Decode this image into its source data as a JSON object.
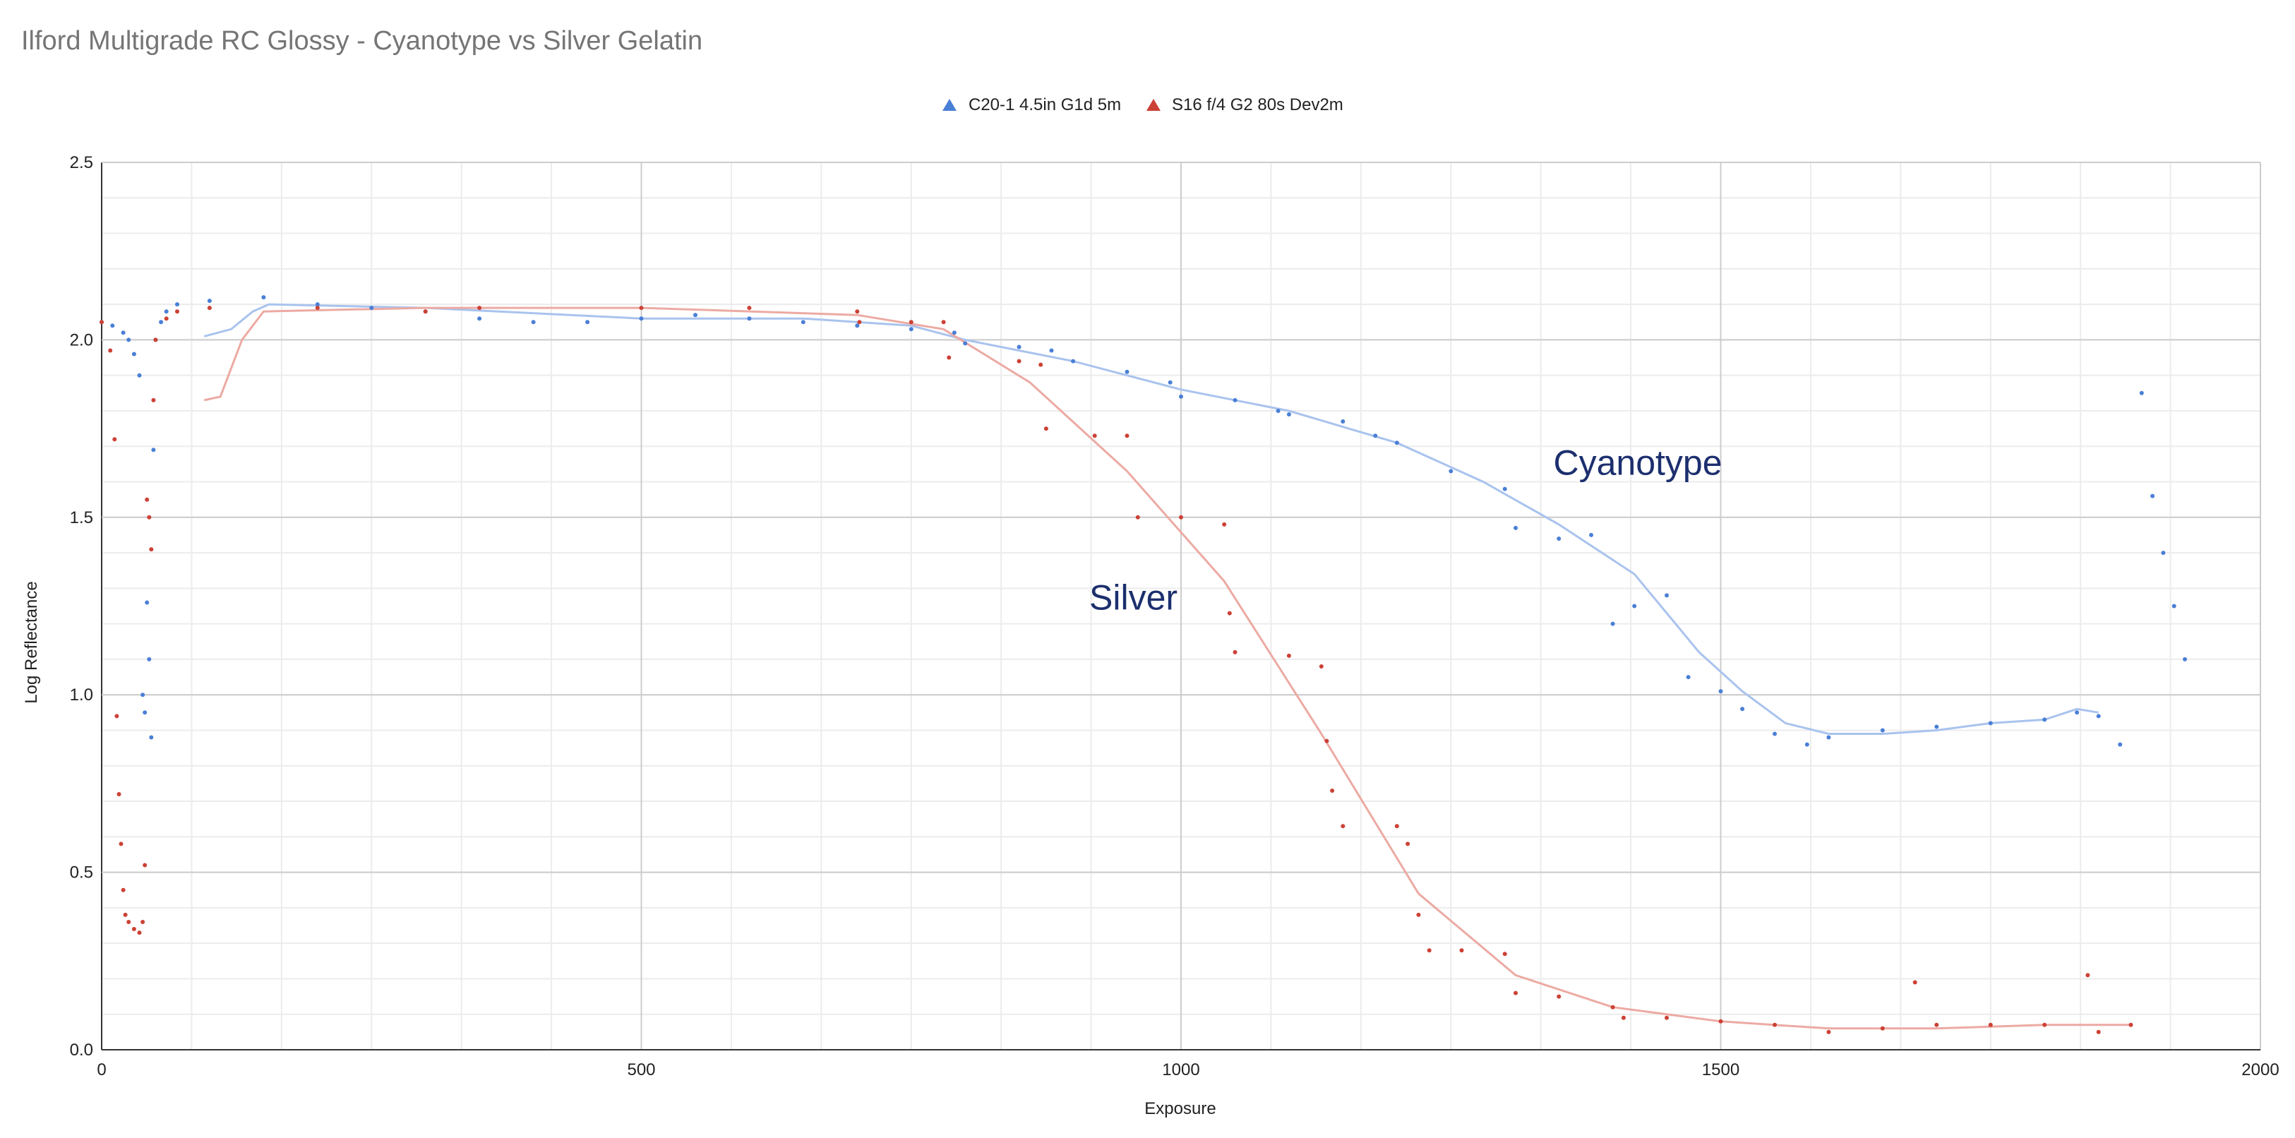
{
  "chart_data": {
    "type": "scatter",
    "title": "Ilford Multigrade RC Glossy - Cyanotype vs Silver Gelatin",
    "xlabel": "Exposure",
    "ylabel": "Log Reflectance",
    "xlim": [
      0,
      2000
    ],
    "ylim": [
      0,
      2.5
    ],
    "x_ticks": [
      0,
      500,
      1000,
      1500,
      2000
    ],
    "y_ticks": [
      0.0,
      0.5,
      1.0,
      1.5,
      2.0,
      2.5
    ],
    "x_tick_labels": [
      "0",
      "500",
      "1000",
      "1500",
      "2000"
    ],
    "y_tick_labels": [
      "0.0",
      "0.5",
      "1.0",
      "1.5",
      "2.0",
      "2.5"
    ],
    "grid": true,
    "legend_position": "top-center",
    "annotations": [
      {
        "text": "Cyanotype",
        "x": 1345,
        "y": 1.62
      },
      {
        "text": "Silver",
        "x": 915,
        "y": 1.24
      }
    ],
    "series": [
      {
        "name": "C20-1 4.5in G1d 5m",
        "color": "#4a7fd6",
        "trend_color": "#a9c3ee",
        "points": [
          [
            0,
            2.05
          ],
          [
            10,
            2.04
          ],
          [
            20,
            2.02
          ],
          [
            25,
            2.0
          ],
          [
            30,
            1.96
          ],
          [
            35,
            1.9
          ],
          [
            38,
            1.0
          ],
          [
            40,
            0.95
          ],
          [
            42,
            1.26
          ],
          [
            44,
            1.1
          ],
          [
            46,
            0.88
          ],
          [
            48,
            1.69
          ],
          [
            50,
            2.0
          ],
          [
            55,
            2.05
          ],
          [
            60,
            2.08
          ],
          [
            70,
            2.1
          ],
          [
            100,
            2.11
          ],
          [
            150,
            2.12
          ],
          [
            200,
            2.1
          ],
          [
            250,
            2.09
          ],
          [
            300,
            2.08
          ],
          [
            350,
            2.06
          ],
          [
            400,
            2.05
          ],
          [
            450,
            2.05
          ],
          [
            500,
            2.06
          ],
          [
            550,
            2.07
          ],
          [
            600,
            2.06
          ],
          [
            650,
            2.05
          ],
          [
            700,
            2.04
          ],
          [
            750,
            2.03
          ],
          [
            790,
            2.02
          ],
          [
            800,
            1.99
          ],
          [
            850,
            1.98
          ],
          [
            880,
            1.97
          ],
          [
            900,
            1.94
          ],
          [
            950,
            1.91
          ],
          [
            990,
            1.88
          ],
          [
            1000,
            1.84
          ],
          [
            1050,
            1.83
          ],
          [
            1090,
            1.8
          ],
          [
            1100,
            1.79
          ],
          [
            1150,
            1.77
          ],
          [
            1180,
            1.73
          ],
          [
            1200,
            1.71
          ],
          [
            1250,
            1.63
          ],
          [
            1300,
            1.58
          ],
          [
            1310,
            1.47
          ],
          [
            1350,
            1.44
          ],
          [
            1380,
            1.45
          ],
          [
            1400,
            1.2
          ],
          [
            1420,
            1.25
          ],
          [
            1450,
            1.28
          ],
          [
            1470,
            1.05
          ],
          [
            1500,
            1.01
          ],
          [
            1520,
            0.96
          ],
          [
            1550,
            0.89
          ],
          [
            1580,
            0.86
          ],
          [
            1600,
            0.88
          ],
          [
            1650,
            0.9
          ],
          [
            1700,
            0.91
          ],
          [
            1750,
            0.92
          ],
          [
            1800,
            0.93
          ],
          [
            1830,
            0.95
          ],
          [
            1850,
            0.94
          ],
          [
            1870,
            0.86
          ],
          [
            1890,
            1.85
          ],
          [
            1900,
            1.56
          ],
          [
            1910,
            1.4
          ],
          [
            1920,
            1.25
          ],
          [
            1930,
            1.1
          ]
        ],
        "trend": [
          [
            95,
            2.01
          ],
          [
            120,
            2.03
          ],
          [
            140,
            2.08
          ],
          [
            155,
            2.1
          ],
          [
            300,
            2.09
          ],
          [
            500,
            2.06
          ],
          [
            650,
            2.06
          ],
          [
            750,
            2.04
          ],
          [
            800,
            2.0
          ],
          [
            900,
            1.94
          ],
          [
            1000,
            1.86
          ],
          [
            1100,
            1.8
          ],
          [
            1200,
            1.71
          ],
          [
            1280,
            1.6
          ],
          [
            1350,
            1.48
          ],
          [
            1420,
            1.34
          ],
          [
            1480,
            1.12
          ],
          [
            1520,
            1.01
          ],
          [
            1560,
            0.92
          ],
          [
            1600,
            0.89
          ],
          [
            1650,
            0.89
          ],
          [
            1700,
            0.9
          ],
          [
            1750,
            0.92
          ],
          [
            1800,
            0.93
          ],
          [
            1830,
            0.96
          ],
          [
            1850,
            0.95
          ]
        ]
      },
      {
        "name": "S16 f/4 G2 80s Dev2m",
        "color": "#cc4135",
        "trend_color": "#ecaaa3",
        "points": [
          [
            0,
            2.05
          ],
          [
            8,
            1.97
          ],
          [
            12,
            1.72
          ],
          [
            14,
            0.94
          ],
          [
            16,
            0.72
          ],
          [
            18,
            0.58
          ],
          [
            20,
            0.45
          ],
          [
            22,
            0.38
          ],
          [
            25,
            0.36
          ],
          [
            30,
            0.34
          ],
          [
            35,
            0.33
          ],
          [
            38,
            0.36
          ],
          [
            40,
            0.52
          ],
          [
            42,
            1.55
          ],
          [
            44,
            1.5
          ],
          [
            46,
            1.41
          ],
          [
            48,
            1.83
          ],
          [
            50,
            2.0
          ],
          [
            60,
            2.06
          ],
          [
            70,
            2.08
          ],
          [
            100,
            2.09
          ],
          [
            200,
            2.09
          ],
          [
            300,
            2.08
          ],
          [
            350,
            2.09
          ],
          [
            500,
            2.09
          ],
          [
            600,
            2.09
          ],
          [
            700,
            2.08
          ],
          [
            702,
            2.05
          ],
          [
            750,
            2.05
          ],
          [
            780,
            2.05
          ],
          [
            785,
            1.95
          ],
          [
            850,
            1.94
          ],
          [
            870,
            1.93
          ],
          [
            875,
            1.75
          ],
          [
            920,
            1.73
          ],
          [
            950,
            1.73
          ],
          [
            960,
            1.5
          ],
          [
            1000,
            1.5
          ],
          [
            1040,
            1.48
          ],
          [
            1045,
            1.23
          ],
          [
            1050,
            1.12
          ],
          [
            1100,
            1.11
          ],
          [
            1130,
            1.08
          ],
          [
            1135,
            0.87
          ],
          [
            1140,
            0.73
          ],
          [
            1150,
            0.63
          ],
          [
            1200,
            0.63
          ],
          [
            1210,
            0.58
          ],
          [
            1220,
            0.38
          ],
          [
            1230,
            0.28
          ],
          [
            1260,
            0.28
          ],
          [
            1300,
            0.27
          ],
          [
            1310,
            0.16
          ],
          [
            1350,
            0.15
          ],
          [
            1400,
            0.12
          ],
          [
            1410,
            0.09
          ],
          [
            1450,
            0.09
          ],
          [
            1500,
            0.08
          ],
          [
            1550,
            0.07
          ],
          [
            1600,
            0.05
          ],
          [
            1650,
            0.06
          ],
          [
            1680,
            0.19
          ],
          [
            1700,
            0.07
          ],
          [
            1750,
            0.07
          ],
          [
            1800,
            0.07
          ],
          [
            1840,
            0.21
          ],
          [
            1850,
            0.05
          ],
          [
            1880,
            0.07
          ]
        ],
        "trend": [
          [
            95,
            1.83
          ],
          [
            110,
            1.84
          ],
          [
            130,
            2.0
          ],
          [
            150,
            2.08
          ],
          [
            300,
            2.09
          ],
          [
            500,
            2.09
          ],
          [
            700,
            2.07
          ],
          [
            780,
            2.03
          ],
          [
            860,
            1.88
          ],
          [
            950,
            1.63
          ],
          [
            1040,
            1.32
          ],
          [
            1130,
            0.89
          ],
          [
            1220,
            0.44
          ],
          [
            1310,
            0.21
          ],
          [
            1400,
            0.12
          ],
          [
            1500,
            0.08
          ],
          [
            1600,
            0.06
          ],
          [
            1700,
            0.06
          ],
          [
            1800,
            0.07
          ],
          [
            1880,
            0.07
          ]
        ]
      }
    ]
  }
}
